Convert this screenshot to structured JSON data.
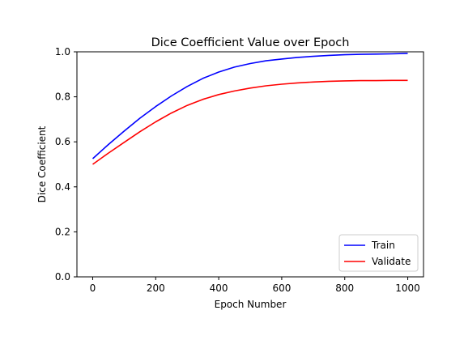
{
  "chart_data": {
    "type": "line",
    "title": "Dice Coefficient Value over Epoch",
    "xlabel": "Epoch Number",
    "ylabel": "Dice Coefficient",
    "xlim": [
      -50,
      1050
    ],
    "ylim": [
      0.0,
      1.0
    ],
    "xticks": [
      0,
      200,
      400,
      600,
      800,
      1000
    ],
    "yticks": [
      0.0,
      0.2,
      0.4,
      0.6,
      0.8,
      1.0
    ],
    "xtick_labels": [
      "0",
      "200",
      "400",
      "600",
      "800",
      "1000"
    ],
    "ytick_labels": [
      "0.0",
      "0.2",
      "0.4",
      "0.6",
      "0.8",
      "1.0"
    ],
    "grid": false,
    "legend_position": "lower-right",
    "x": [
      0,
      50,
      100,
      150,
      200,
      250,
      300,
      350,
      400,
      450,
      500,
      550,
      600,
      650,
      700,
      750,
      800,
      850,
      900,
      950,
      1000
    ],
    "series": [
      {
        "name": "Train",
        "color": "#0000ff",
        "values": [
          0.525,
          0.588,
          0.648,
          0.705,
          0.757,
          0.804,
          0.846,
          0.882,
          0.91,
          0.932,
          0.948,
          0.96,
          0.968,
          0.975,
          0.98,
          0.984,
          0.987,
          0.989,
          0.99,
          0.991,
          0.993
        ]
      },
      {
        "name": "Validate",
        "color": "#ff0000",
        "values": [
          0.5,
          0.55,
          0.598,
          0.645,
          0.689,
          0.728,
          0.762,
          0.789,
          0.81,
          0.826,
          0.839,
          0.849,
          0.856,
          0.862,
          0.866,
          0.869,
          0.871,
          0.872,
          0.872,
          0.873,
          0.873
        ]
      }
    ]
  }
}
